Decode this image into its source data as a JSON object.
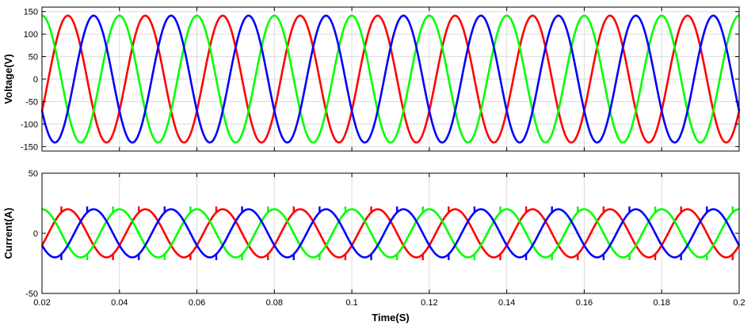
{
  "chart_data": [
    {
      "type": "line",
      "title": "",
      "xlabel": "",
      "ylabel": "Voltage(V)",
      "xlim": [
        0.02,
        0.2
      ],
      "ylim": [
        -160,
        160
      ],
      "yticks": [
        -150,
        -100,
        -50,
        0,
        50,
        100,
        150
      ],
      "ytick_labels": [
        "-150",
        "-100",
        "-50",
        "0",
        "50",
        "100",
        "150"
      ],
      "grid": true,
      "legend": "none",
      "series": [
        {
          "color": "#ff0000",
          "waveform": "sine",
          "amplitude": 141,
          "frequency_hz": 50,
          "phase_deg": -30
        },
        {
          "color": "#00ff00",
          "waveform": "sine",
          "amplitude": 141,
          "frequency_hz": 50,
          "phase_deg": 90
        },
        {
          "color": "#0000ff",
          "waveform": "sine",
          "amplitude": 141,
          "frequency_hz": 50,
          "phase_deg": 210
        }
      ]
    },
    {
      "type": "line",
      "title": "",
      "xlabel": "Time(S)",
      "ylabel": "Current(A)",
      "xlim": [
        0.02,
        0.2
      ],
      "ylim": [
        -50,
        50
      ],
      "xticks": [
        0.02,
        0.04,
        0.06,
        0.08,
        0.1,
        0.12,
        0.14,
        0.16,
        0.18,
        0.2
      ],
      "xtick_labels": [
        "0.02",
        "0.04",
        "0.06",
        "0.08",
        "0.1",
        "0.12",
        "0.14",
        "0.16",
        "0.18",
        "0.2"
      ],
      "yticks": [
        -50,
        0,
        50
      ],
      "ytick_labels": [
        "-50",
        "0",
        "50"
      ],
      "grid": true,
      "legend": "none",
      "series": [
        {
          "color": "#ff0000",
          "waveform": "sine",
          "amplitude": 20,
          "frequency_hz": 50,
          "phase_deg": -30,
          "commutation_spike": 5
        },
        {
          "color": "#00ff00",
          "waveform": "sine",
          "amplitude": 20,
          "frequency_hz": 50,
          "phase_deg": 90,
          "commutation_spike": 5
        },
        {
          "color": "#0000ff",
          "waveform": "sine",
          "amplitude": 20,
          "frequency_hz": 50,
          "phase_deg": 210,
          "commutation_spike": 5
        }
      ]
    }
  ]
}
